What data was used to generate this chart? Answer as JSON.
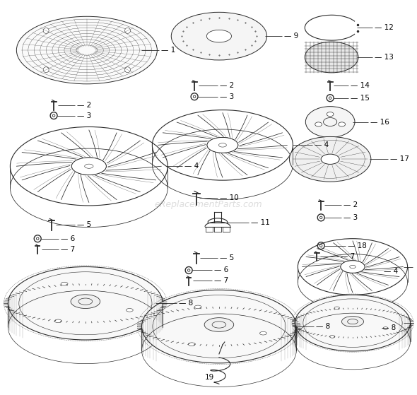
{
  "bg_color": "#ffffff",
  "line_color": "#2a2a2a",
  "text_color": "#000000",
  "watermark": "eReplacementParts.com",
  "watermark_color": "#bbbbbb",
  "figsize": [
    5.9,
    5.59
  ],
  "dpi": 100
}
